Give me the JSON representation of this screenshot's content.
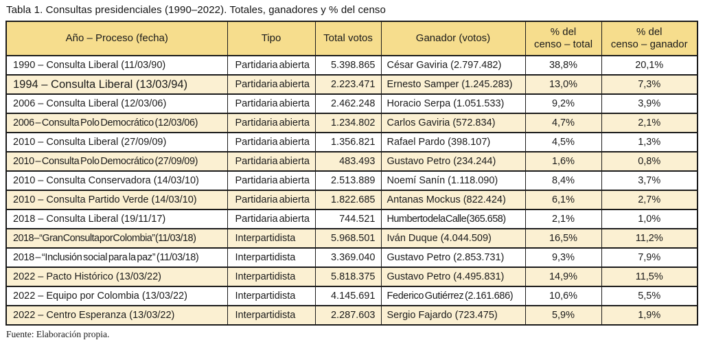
{
  "title": "Tabla 1. Consultas presidenciales (1990–2022). Totales, ganadores y % del censo",
  "source": "Fuente: Elaboración propia.",
  "colors": {
    "header_bg": "#f6dd8d",
    "shaded_row_bg": "#fbf0d2",
    "border": "#1a1a1a",
    "text": "#1a1a1a"
  },
  "table": {
    "headers": {
      "proceso": "Año – Proceso (fecha)",
      "tipo": "Tipo",
      "total": "Total votos",
      "ganador": "Ganador (votos)",
      "pct_total": "% del\ncenso – total",
      "pct_ganador": "% del\ncenso – ganador"
    },
    "rows": [
      {
        "proceso": "1990 – Consulta Liberal (11/03/90)",
        "tipo": "Partidaria abierta",
        "total": "5.398.865",
        "ganador": "César Gaviria (2.797.482)",
        "pct_total": "38,8%",
        "pct_ganador": "20,1%",
        "shaded": false
      },
      {
        "proceso": "1994 – Consulta Liberal (13/03/94)",
        "tipo": "Partidaria abierta",
        "total": "2.223.471",
        "ganador": "Ernesto Samper (1.245.283)",
        "pct_total": "13,0%",
        "pct_ganador": "7,3%",
        "shaded": true,
        "proceso_style": "large"
      },
      {
        "proceso": "2006 – Consulta Liberal (12/03/06)",
        "tipo": "Partidaria abierta",
        "total": "2.462.248",
        "ganador": "Horacio Serpa (1.051.533)",
        "pct_total": "9,2%",
        "pct_ganador": "3,9%",
        "shaded": false
      },
      {
        "proceso": "2006 – Consulta Polo Democrático (12/03/06)",
        "tipo": "Partidaria abierta",
        "total": "1.234.802",
        "ganador": "Carlos Gaviria (572.834)",
        "pct_total": "4,7%",
        "pct_ganador": "2,1%",
        "shaded": true,
        "proceso_style": "tight"
      },
      {
        "proceso": "2010 – Consulta Liberal (27/09/09)",
        "tipo": "Partidaria abierta",
        "total": "1.356.821",
        "ganador": "Rafael Pardo (398.107)",
        "pct_total": "4,5%",
        "pct_ganador": "1,3%",
        "shaded": false
      },
      {
        "proceso": "2010 – Consulta Polo Democrático (27/09/09)",
        "tipo": "Partidaria abierta",
        "total": "483.493",
        "ganador": "Gustavo Petro (234.244)",
        "pct_total": "1,6%",
        "pct_ganador": "0,8%",
        "shaded": true,
        "proceso_style": "tight"
      },
      {
        "proceso": "2010 – Consulta Conservadora (14/03/10)",
        "tipo": "Partidaria abierta",
        "total": "2.513.889",
        "ganador": "Noemí Sanín (1.118.090)",
        "pct_total": "8,4%",
        "pct_ganador": "3,7%",
        "shaded": false
      },
      {
        "proceso": "2010 – Consulta Partido Verde (14/03/10)",
        "tipo": "Partidaria abierta",
        "total": "1.822.685",
        "ganador": "Antanas Mockus (822.424)",
        "pct_total": "6,1%",
        "pct_ganador": "2,7%",
        "shaded": true
      },
      {
        "proceso": "2018 – Consulta Liberal (19/11/17)",
        "tipo": "Partidaria abierta",
        "total": "744.521",
        "ganador": "Humberto de la Calle (365.658)",
        "pct_total": "2,1%",
        "pct_ganador": "1,0%",
        "shaded": false,
        "ganador_style": "tighter"
      },
      {
        "proceso": "2018 – “Gran Consulta por Colombia” (11/03/18)",
        "tipo": "Interpartidista",
        "total": "5.968.501",
        "ganador": "Iván Duque (4.044.509)",
        "pct_total": "16,5%",
        "pct_ganador": "11,2%",
        "shaded": true,
        "proceso_style": "tighter"
      },
      {
        "proceso": "2018 – “Inclusión social para la paz” (11/03/18)",
        "tipo": "Interpartidista",
        "total": "3.369.040",
        "ganador": "Gustavo Petro (2.853.731)",
        "pct_total": "9,3%",
        "pct_ganador": "7,9%",
        "shaded": false,
        "proceso_style": "tight"
      },
      {
        "proceso": "2022 – Pacto Histórico (13/03/22)",
        "tipo": "Interpartidista",
        "total": "5.818.375",
        "ganador": "Gustavo Petro (4.495.831)",
        "pct_total": "14,9%",
        "pct_ganador": "11,5%",
        "shaded": true
      },
      {
        "proceso": "2022 – Equipo por Colombia (13/03/22)",
        "tipo": "Interpartidista",
        "total": "4.145.691",
        "ganador": "Federico Gutiérrez (2.161.686)",
        "pct_total": "10,6%",
        "pct_ganador": "5,5%",
        "shaded": false,
        "ganador_style": "tight"
      },
      {
        "proceso": "2022 – Centro Esperanza (13/03/22)",
        "tipo": "Interpartidista",
        "total": "2.287.603",
        "ganador": "Sergio Fajardo (723.475)",
        "pct_total": "5,9%",
        "pct_ganador": "1,9%",
        "shaded": true
      }
    ]
  }
}
